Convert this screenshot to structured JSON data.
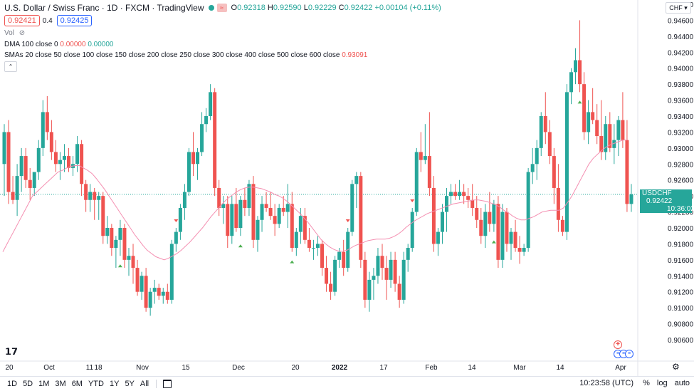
{
  "header": {
    "symbol_title": "U.S. Dollar / Swiss Franc · 1D · FXCM · TradingView",
    "badge_icon": "wave-icon",
    "open_label": "O",
    "open": "0.92318",
    "high_label": "H",
    "high": "0.92590",
    "low_label": "L",
    "low": "0.92229",
    "close_label": "C",
    "close": "0.92422",
    "change": "+0.00104 (+0.11%)"
  },
  "trade": {
    "sell": "0.92421",
    "spread": "0.4",
    "buy": "0.92425"
  },
  "indicators": {
    "vol_label": "Vol",
    "dma_label": "DMA 100 close 0",
    "dma_v1": "0.00000",
    "dma_v2": "0.00000",
    "smas_label": "SMAs 20 close 50 close 100 close 150 close 200 close 250 close 300 close 400 close 500 close 600 close",
    "smas_value": "0.93091"
  },
  "price_axis": {
    "currency": "CHF",
    "ticks": [
      "0.94800",
      "0.94600",
      "0.94400",
      "0.94200",
      "0.94000",
      "0.93800",
      "0.93600",
      "0.93400",
      "0.93200",
      "0.93000",
      "0.92800",
      "0.92600",
      "0.92400",
      "0.92200",
      "0.92000",
      "0.91800",
      "0.91600",
      "0.91400",
      "0.91200",
      "0.91000",
      "0.90800",
      "0.90600"
    ],
    "last_symbol": "USDCHF",
    "last_price": "0.92422",
    "countdown": "10:36:02"
  },
  "time_axis": {
    "labels": [
      "20",
      "Oct",
      "11",
      "18",
      "Nov",
      "15",
      "Dec",
      "20",
      "2022",
      "17",
      "Feb",
      "14",
      "Mar",
      "14",
      "Apr"
    ]
  },
  "bottom": {
    "ranges": [
      "1D",
      "5D",
      "1M",
      "3M",
      "6M",
      "YTD",
      "1Y",
      "5Y",
      "All"
    ],
    "time": "10:23:58 (UTC)",
    "percent": "%",
    "log": "log",
    "auto": "auto"
  },
  "colors": {
    "up": "#26a69a",
    "down": "#ef5350",
    "sma": "#f48fb1",
    "signal_buy": "#4caf50",
    "signal_sell": "#ef5350"
  },
  "chart_data": {
    "type": "candlestick",
    "title": "U.S. Dollar / Swiss Franc · 1D · FXCM",
    "ylim": [
      0.9055,
      0.9485
    ],
    "series": [
      {
        "ohlc": [
          [
            0.928,
            0.933,
            0.924,
            0.932
          ],
          [
            0.932,
            0.9335,
            0.923,
            0.9245
          ],
          [
            0.9245,
            0.9265,
            0.923,
            0.9235
          ],
          [
            0.9235,
            0.928,
            0.9215,
            0.9265
          ],
          [
            0.9265,
            0.93,
            0.9245,
            0.929
          ],
          [
            0.929,
            0.93,
            0.925,
            0.926
          ],
          [
            0.926,
            0.9275,
            0.9235,
            0.925
          ],
          [
            0.925,
            0.927,
            0.924,
            0.927
          ],
          [
            0.927,
            0.931,
            0.926,
            0.93
          ],
          [
            0.93,
            0.936,
            0.929,
            0.9345
          ],
          [
            0.9345,
            0.9365,
            0.931,
            0.932
          ],
          [
            0.932,
            0.9335,
            0.9285,
            0.9295
          ],
          [
            0.9295,
            0.931,
            0.927,
            0.928
          ],
          [
            0.928,
            0.9295,
            0.926,
            0.9285
          ],
          [
            0.9285,
            0.9305,
            0.927,
            0.929
          ],
          [
            0.929,
            0.93,
            0.927,
            0.9275
          ],
          [
            0.9275,
            0.929,
            0.9265,
            0.928
          ],
          [
            0.928,
            0.9315,
            0.927,
            0.9305
          ],
          [
            0.9305,
            0.931,
            0.924,
            0.9255
          ],
          [
            0.9255,
            0.926,
            0.922,
            0.9235
          ],
          [
            0.9235,
            0.9255,
            0.922,
            0.9245
          ],
          [
            0.9245,
            0.925,
            0.921,
            0.9235
          ],
          [
            0.9235,
            0.9245,
            0.921,
            0.924
          ],
          [
            0.924,
            0.9245,
            0.918,
            0.919
          ],
          [
            0.919,
            0.9215,
            0.918,
            0.92
          ],
          [
            0.92,
            0.9205,
            0.9165,
            0.9175
          ],
          [
            0.9175,
            0.919,
            0.915,
            0.9185
          ],
          [
            0.9185,
            0.921,
            0.9165,
            0.92
          ],
          [
            0.92,
            0.9205,
            0.915,
            0.916
          ],
          [
            0.916,
            0.9175,
            0.914,
            0.9165
          ],
          [
            0.9165,
            0.918,
            0.913,
            0.915
          ],
          [
            0.915,
            0.916,
            0.9115,
            0.912
          ],
          [
            0.912,
            0.9145,
            0.911,
            0.914
          ],
          [
            0.914,
            0.915,
            0.9095,
            0.91
          ],
          [
            0.91,
            0.9125,
            0.909,
            0.912
          ],
          [
            0.912,
            0.9135,
            0.9105,
            0.9125
          ],
          [
            0.9125,
            0.913,
            0.911,
            0.9115
          ],
          [
            0.9115,
            0.9125,
            0.9105,
            0.912
          ],
          [
            0.912,
            0.913,
            0.9105,
            0.911
          ],
          [
            0.911,
            0.9185,
            0.9105,
            0.918
          ],
          [
            0.918,
            0.92,
            0.917,
            0.9195
          ],
          [
            0.9195,
            0.923,
            0.9185,
            0.9225
          ],
          [
            0.9225,
            0.9255,
            0.921,
            0.9245
          ],
          [
            0.9245,
            0.93,
            0.924,
            0.9295
          ],
          [
            0.9295,
            0.932,
            0.9265,
            0.928
          ],
          [
            0.928,
            0.93,
            0.926,
            0.9295
          ],
          [
            0.9295,
            0.9345,
            0.929,
            0.933
          ],
          [
            0.933,
            0.935,
            0.932,
            0.934
          ],
          [
            0.934,
            0.938,
            0.9335,
            0.937
          ],
          [
            0.937,
            0.9375,
            0.924,
            0.925
          ],
          [
            0.925,
            0.926,
            0.9215,
            0.9225
          ],
          [
            0.9225,
            0.924,
            0.9205,
            0.923
          ],
          [
            0.923,
            0.924,
            0.9175,
            0.919
          ],
          [
            0.919,
            0.924,
            0.918,
            0.923
          ],
          [
            0.923,
            0.925,
            0.9195,
            0.92
          ],
          [
            0.92,
            0.924,
            0.919,
            0.9235
          ],
          [
            0.9235,
            0.925,
            0.9215,
            0.9225
          ],
          [
            0.9225,
            0.926,
            0.9215,
            0.9255
          ],
          [
            0.9255,
            0.9265,
            0.9175,
            0.9185
          ],
          [
            0.9185,
            0.9215,
            0.917,
            0.921
          ],
          [
            0.921,
            0.924,
            0.9195,
            0.923
          ],
          [
            0.923,
            0.9245,
            0.922,
            0.9225
          ],
          [
            0.9225,
            0.9245,
            0.921,
            0.9215
          ],
          [
            0.9215,
            0.923,
            0.919,
            0.9205
          ],
          [
            0.9205,
            0.923,
            0.92,
            0.9225
          ],
          [
            0.9225,
            0.924,
            0.9215,
            0.922
          ],
          [
            0.922,
            0.9255,
            0.92,
            0.923
          ],
          [
            0.923,
            0.9245,
            0.917,
            0.9175
          ],
          [
            0.9175,
            0.92,
            0.9165,
            0.9195
          ],
          [
            0.9195,
            0.9225,
            0.918,
            0.9215
          ],
          [
            0.9215,
            0.9225,
            0.918,
            0.9185
          ],
          [
            0.9185,
            0.92,
            0.917,
            0.9175
          ],
          [
            0.9175,
            0.9185,
            0.916,
            0.9175
          ],
          [
            0.9175,
            0.919,
            0.9165,
            0.918
          ],
          [
            0.918,
            0.9185,
            0.914,
            0.915
          ],
          [
            0.915,
            0.9165,
            0.912,
            0.913
          ],
          [
            0.913,
            0.9145,
            0.911,
            0.912
          ],
          [
            0.912,
            0.9165,
            0.9115,
            0.916
          ],
          [
            0.916,
            0.9175,
            0.915,
            0.917
          ],
          [
            0.917,
            0.9185,
            0.914,
            0.915
          ],
          [
            0.915,
            0.92,
            0.9145,
            0.9195
          ],
          [
            0.9195,
            0.926,
            0.919,
            0.9255
          ],
          [
            0.9255,
            0.927,
            0.9225,
            0.9265
          ],
          [
            0.9265,
            0.927,
            0.915,
            0.916
          ],
          [
            0.916,
            0.917,
            0.91,
            0.911
          ],
          [
            0.911,
            0.9145,
            0.9095,
            0.9135
          ],
          [
            0.9135,
            0.915,
            0.911,
            0.914
          ],
          [
            0.914,
            0.9175,
            0.913,
            0.9165
          ],
          [
            0.9165,
            0.918,
            0.9135,
            0.915
          ],
          [
            0.915,
            0.9165,
            0.911,
            0.9135
          ],
          [
            0.9135,
            0.917,
            0.9125,
            0.916
          ],
          [
            0.916,
            0.917,
            0.912,
            0.913
          ],
          [
            0.913,
            0.914,
            0.91,
            0.911
          ],
          [
            0.911,
            0.917,
            0.9105,
            0.916
          ],
          [
            0.916,
            0.918,
            0.9145,
            0.9175
          ],
          [
            0.9175,
            0.9225,
            0.917,
            0.922
          ],
          [
            0.922,
            0.93,
            0.9215,
            0.9295
          ],
          [
            0.9295,
            0.932,
            0.927,
            0.9285
          ],
          [
            0.9285,
            0.933,
            0.928,
            0.929
          ],
          [
            0.929,
            0.9345,
            0.924,
            0.925
          ],
          [
            0.925,
            0.9265,
            0.917,
            0.918
          ],
          [
            0.918,
            0.92,
            0.9165,
            0.9195
          ],
          [
            0.9195,
            0.923,
            0.918,
            0.922
          ],
          [
            0.922,
            0.925,
            0.9195,
            0.924
          ],
          [
            0.924,
            0.9255,
            0.923,
            0.9245
          ],
          [
            0.9245,
            0.9255,
            0.9235,
            0.924
          ],
          [
            0.924,
            0.926,
            0.9235,
            0.9245
          ],
          [
            0.9245,
            0.9255,
            0.923,
            0.924
          ],
          [
            0.924,
            0.925,
            0.9225,
            0.9235
          ],
          [
            0.9235,
            0.9255,
            0.9215,
            0.9225
          ],
          [
            0.9225,
            0.924,
            0.92,
            0.921
          ],
          [
            0.921,
            0.9225,
            0.918,
            0.919
          ],
          [
            0.919,
            0.923,
            0.9175,
            0.922
          ],
          [
            0.922,
            0.9245,
            0.9195,
            0.9205
          ],
          [
            0.9205,
            0.9235,
            0.9195,
            0.923
          ],
          [
            0.923,
            0.924,
            0.915,
            0.916
          ],
          [
            0.916,
            0.923,
            0.915,
            0.922
          ],
          [
            0.922,
            0.9225,
            0.917,
            0.918
          ],
          [
            0.918,
            0.92,
            0.916,
            0.9195
          ],
          [
            0.9195,
            0.921,
            0.917,
            0.9175
          ],
          [
            0.9175,
            0.919,
            0.9155,
            0.917
          ],
          [
            0.917,
            0.918,
            0.9165,
            0.9175
          ],
          [
            0.9175,
            0.9275,
            0.917,
            0.927
          ],
          [
            0.927,
            0.93,
            0.9255,
            0.928
          ],
          [
            0.928,
            0.931,
            0.926,
            0.93
          ],
          [
            0.93,
            0.9345,
            0.929,
            0.934
          ],
          [
            0.934,
            0.937,
            0.9305,
            0.932
          ],
          [
            0.932,
            0.9335,
            0.928,
            0.929
          ],
          [
            0.929,
            0.93,
            0.923,
            0.925
          ],
          [
            0.925,
            0.928,
            0.9195,
            0.921
          ],
          [
            0.921,
            0.9215,
            0.919,
            0.9195
          ],
          [
            0.9195,
            0.938,
            0.9185,
            0.937
          ],
          [
            0.937,
            0.94,
            0.9355,
            0.9395
          ],
          [
            0.9395,
            0.9425,
            0.938,
            0.941
          ],
          [
            0.941,
            0.946,
            0.937,
            0.938
          ],
          [
            0.938,
            0.9395,
            0.931,
            0.932
          ],
          [
            0.932,
            0.936,
            0.9305,
            0.9345
          ],
          [
            0.9345,
            0.9375,
            0.933,
            0.9335
          ],
          [
            0.9335,
            0.9355,
            0.9305,
            0.9315
          ],
          [
            0.9315,
            0.936,
            0.9285,
            0.9295
          ],
          [
            0.9295,
            0.934,
            0.9285,
            0.933
          ],
          [
            0.933,
            0.9345,
            0.9295,
            0.93
          ],
          [
            0.93,
            0.933,
            0.928,
            0.931
          ],
          [
            0.931,
            0.934,
            0.929,
            0.9335
          ],
          [
            0.9335,
            0.937,
            0.93,
            0.931
          ],
          [
            0.931,
            0.9335,
            0.922,
            0.923
          ],
          [
            0.923,
            0.9255,
            0.922,
            0.9242
          ]
        ]
      },
      {
        "name": "SMAs",
        "values": [
          0.917,
          0.918,
          0.919,
          0.92,
          0.921,
          0.922,
          0.923,
          0.924,
          0.9245,
          0.925,
          0.9255,
          0.926,
          0.9265,
          0.927,
          0.9272,
          0.9275,
          0.9277,
          0.9278,
          0.9278,
          0.9275,
          0.9272,
          0.9268,
          0.9262,
          0.9255,
          0.9248,
          0.924,
          0.9232,
          0.9224,
          0.9216,
          0.9208,
          0.92,
          0.9192,
          0.9185,
          0.9178,
          0.9172,
          0.9168,
          0.9164,
          0.9162,
          0.916,
          0.9162,
          0.9165,
          0.9168,
          0.9172,
          0.9177,
          0.9182,
          0.9188,
          0.9194,
          0.92,
          0.9207,
          0.9214,
          0.922,
          0.9226,
          0.9232,
          0.9237,
          0.9241,
          0.9245,
          0.9248,
          0.925,
          0.9251,
          0.9251,
          0.925,
          0.9249,
          0.9247,
          0.9245,
          0.9242,
          0.924,
          0.9237,
          0.9233,
          0.9228,
          0.9223,
          0.9218,
          0.9212,
          0.9206,
          0.9199,
          0.9192,
          0.9185,
          0.918,
          0.9176,
          0.9173,
          0.9171,
          0.9171,
          0.9172,
          0.9175,
          0.9178,
          0.918,
          0.9182,
          0.9184,
          0.9185,
          0.9186,
          0.9186,
          0.9186,
          0.9187,
          0.9189,
          0.9192,
          0.9196,
          0.9201,
          0.9205,
          0.9209,
          0.9212,
          0.9215,
          0.9218,
          0.922,
          0.9222,
          0.9224,
          0.9226,
          0.9228,
          0.923,
          0.9231,
          0.9232,
          0.9233,
          0.9234,
          0.9235,
          0.9235,
          0.9234,
          0.9233,
          0.9231,
          0.9229,
          0.9226,
          0.9222,
          0.9219,
          0.9215,
          0.9212,
          0.921,
          0.921,
          0.9212,
          0.9214,
          0.9217,
          0.922,
          0.9221,
          0.9222,
          0.9222,
          0.9222,
          0.9225,
          0.9232,
          0.924,
          0.925,
          0.926,
          0.927,
          0.928,
          0.9287,
          0.9292,
          0.9297,
          0.9301,
          0.9304,
          0.9306,
          0.9308,
          0.931,
          0.931
        ]
      }
    ],
    "grid": false,
    "time_labels": [
      "20",
      "Oct",
      "11",
      "18",
      "Nov",
      "15",
      "Dec",
      "20",
      "2022",
      "17",
      "Feb",
      "14",
      "Mar",
      "14",
      "Apr"
    ]
  }
}
